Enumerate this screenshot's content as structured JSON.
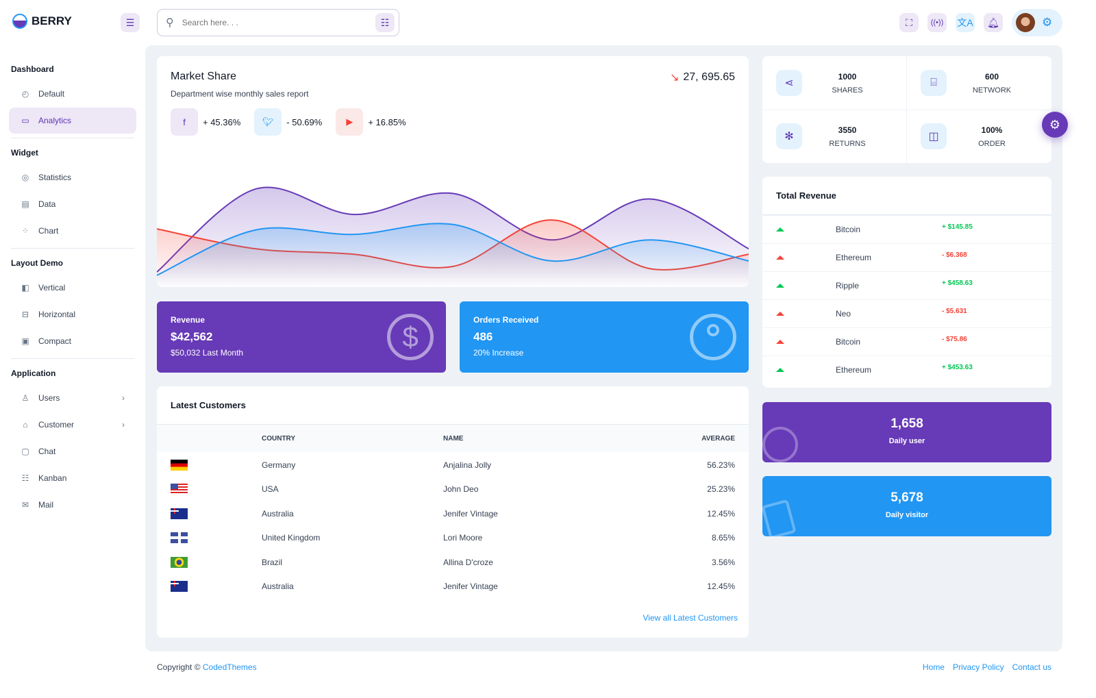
{
  "brand": {
    "name": "BERRY"
  },
  "header": {
    "search_placeholder": "Search here. . ."
  },
  "sidebar": {
    "sections": [
      {
        "title": "Dashboard",
        "items": [
          {
            "label": "Default",
            "icon": "dashboard-icon"
          },
          {
            "label": "Analytics",
            "icon": "device-analytics-icon",
            "active": true
          }
        ]
      },
      {
        "title": "Widget",
        "items": [
          {
            "label": "Statistics",
            "icon": "chart-arcs-icon"
          },
          {
            "label": "Data",
            "icon": "clipboard-list-icon"
          },
          {
            "label": "Chart",
            "icon": "chart-dots-icon"
          }
        ]
      },
      {
        "title": "Layout Demo",
        "items": [
          {
            "label": "Vertical",
            "icon": "layout-sidebar-icon"
          },
          {
            "label": "Horizontal",
            "icon": "layout-navbar-icon"
          },
          {
            "label": "Compact",
            "icon": "layout-compact-icon"
          }
        ]
      },
      {
        "title": "Application",
        "items": [
          {
            "label": "Users",
            "icon": "user-check-icon"
          },
          {
            "label": "Customer",
            "icon": "basket-icon"
          },
          {
            "label": "Chat",
            "icon": "messages-icon"
          },
          {
            "label": "Kanban",
            "icon": "kanban-icon"
          },
          {
            "label": "Mail",
            "icon": "mail-icon"
          }
        ]
      }
    ]
  },
  "market": {
    "title": "Market Share",
    "subtitle": "Department wise monthly sales report",
    "total": "27, 695.65",
    "badges": [
      {
        "icon": "facebook-icon",
        "value": "+ 45.36%",
        "bg": "#ede7f6",
        "color": "#5e35b1"
      },
      {
        "icon": "twitter-icon",
        "value": "- 50.69%",
        "bg": "#e3f2fd",
        "color": "#2196f3"
      },
      {
        "icon": "youtube-icon",
        "value": "+ 16.85%",
        "bg": "#fbe9e7",
        "color": "#f44336"
      }
    ],
    "chart": {
      "type": "area",
      "series": [
        {
          "color": "#673ab7",
          "values": [
            8,
            83,
            60,
            79,
            37,
            74,
            29
          ]
        },
        {
          "color": "#f44336",
          "values": [
            47,
            29,
            24,
            13,
            55,
            11,
            24
          ]
        },
        {
          "color": "#2196f3",
          "values": [
            5,
            46,
            42,
            51,
            18,
            37,
            18
          ]
        }
      ]
    }
  },
  "stats": [
    {
      "value": "1000",
      "label": "SHARES",
      "icon": "share-icon"
    },
    {
      "value": "600",
      "label": "NETWORK",
      "icon": "router-icon"
    },
    {
      "value": "3550",
      "label": "RETURNS",
      "icon": "atom-icon"
    },
    {
      "value": "100%",
      "label": "ORDER",
      "icon": "shopping-bag-icon"
    }
  ],
  "revenue_card": {
    "title": "Revenue",
    "value": "$42,562",
    "sub": "$50,032 Last Month"
  },
  "orders_card": {
    "title": "Orders Received",
    "value": "486",
    "sub": "20% Increase"
  },
  "total_revenue": {
    "title": "Total Revenue",
    "rows": [
      {
        "name": "Bitcoin",
        "value": "+ $145.85",
        "up": true
      },
      {
        "name": "Ethereum",
        "value": "- $6.368",
        "up": false
      },
      {
        "name": "Ripple",
        "value": "+ $458.63",
        "up": true
      },
      {
        "name": "Neo",
        "value": "- $5.631",
        "up": false
      },
      {
        "name": "Bitcoin",
        "value": "- $75.86",
        "up": false
      },
      {
        "name": "Ethereum",
        "value": "+ $453.63",
        "up": true
      }
    ]
  },
  "daily_user": {
    "value": "1,658",
    "label": "Daily user"
  },
  "daily_visitor": {
    "value": "5,678",
    "label": "Daily visitor"
  },
  "customers": {
    "title": "Latest Customers",
    "headers": {
      "country": "COUNTRY",
      "name": "NAME",
      "average": "AVERAGE"
    },
    "rows": [
      {
        "flag": "de",
        "country": "Germany",
        "name": "Anjalina Jolly",
        "average": "56.23%"
      },
      {
        "flag": "us",
        "country": "USA",
        "name": "John Deo",
        "average": "25.23%"
      },
      {
        "flag": "au",
        "country": "Australia",
        "name": "Jenifer Vintage",
        "average": "12.45%"
      },
      {
        "flag": "gb",
        "country": "United Kingdom",
        "name": "Lori Moore",
        "average": "8.65%"
      },
      {
        "flag": "br",
        "country": "Brazil",
        "name": "Allina D'croze",
        "average": "3.56%"
      },
      {
        "flag": "au",
        "country": "Australia",
        "name": "Jenifer Vintage",
        "average": "12.45%"
      }
    ],
    "view_all": "View all Latest Customers"
  },
  "footer": {
    "copyright": "Copyright ©",
    "company": "CodedThemes",
    "links": [
      "Home",
      "Privacy Policy",
      "Contact us"
    ]
  }
}
